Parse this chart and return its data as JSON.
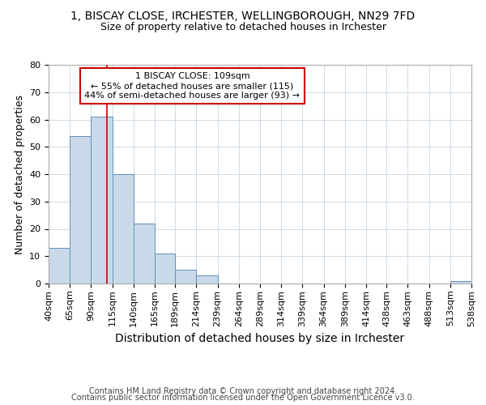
{
  "title": "1, BISCAY CLOSE, IRCHESTER, WELLINGBOROUGH, NN29 7FD",
  "subtitle": "Size of property relative to detached houses in Irchester",
  "xlabel": "Distribution of detached houses by size in Irchester",
  "ylabel": "Number of detached properties",
  "bin_edges": [
    40,
    65,
    90,
    115,
    140,
    165,
    189,
    214,
    239,
    264,
    289,
    314,
    339,
    364,
    389,
    414,
    438,
    463,
    488,
    513,
    538
  ],
  "counts": [
    13,
    54,
    61,
    40,
    22,
    11,
    5,
    3,
    0,
    0,
    0,
    0,
    0,
    0,
    0,
    0,
    0,
    0,
    0,
    1
  ],
  "bar_color": "#c9d9ea",
  "bar_edge_color": "#6090b8",
  "red_line_x": 109,
  "annotation_text": "1 BISCAY CLOSE: 109sqm\n← 55% of detached houses are smaller (115)\n44% of semi-detached houses are larger (93) →",
  "annotation_box_color": "#ffffff",
  "annotation_box_edge_color": "#cc0000",
  "annotation_text_color": "#000000",
  "red_line_color": "#cc0000",
  "ylim": [
    0,
    80
  ],
  "yticks": [
    0,
    10,
    20,
    30,
    40,
    50,
    60,
    70,
    80
  ],
  "footer_line1": "Contains HM Land Registry data © Crown copyright and database right 2024.",
  "footer_line2": "Contains public sector information licensed under the Open Government Licence v3.0.",
  "title_fontsize": 10,
  "subtitle_fontsize": 9,
  "xlabel_fontsize": 10,
  "ylabel_fontsize": 9,
  "tick_fontsize": 8,
  "annotation_fontsize": 8,
  "footer_fontsize": 7,
  "background_color": "#ffffff",
  "grid_color": "#c8d4e0"
}
